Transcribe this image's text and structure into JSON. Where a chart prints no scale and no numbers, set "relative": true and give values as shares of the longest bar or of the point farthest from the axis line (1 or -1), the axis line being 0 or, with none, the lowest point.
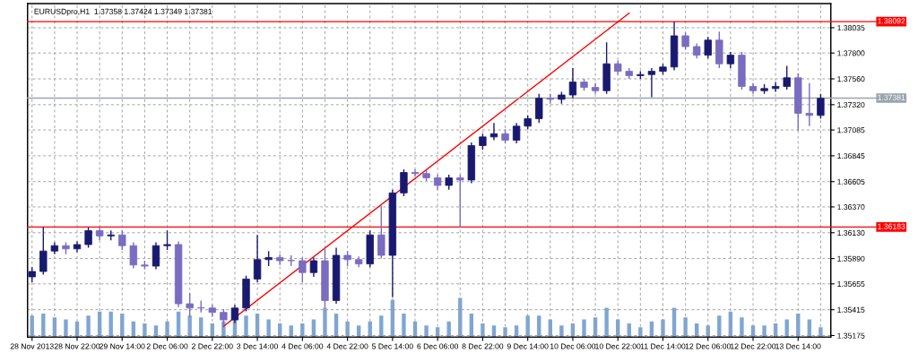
{
  "chart_data": [
    {
      "type": "candlestick",
      "title": "EURUSDpro,H1  1.37358 1.37424 1.37349 1.37381",
      "categories": [
        "28 Nov 2013",
        null,
        null,
        null,
        "28 Nov 22:00",
        null,
        null,
        null,
        "29 Nov 14:00",
        null,
        null,
        null,
        "2 Dec 06:00",
        null,
        null,
        null,
        "2 Dec 22:00",
        null,
        null,
        null,
        "3 Dec 14:00",
        null,
        null,
        null,
        "4 Dec 06:00",
        null,
        null,
        null,
        "4 Dec 22:00",
        null,
        null,
        null,
        "5 Dec 14:00",
        null,
        null,
        null,
        "6 Dec 06:00",
        null,
        null,
        null,
        "8 Dec 22:00",
        null,
        null,
        null,
        "9 Dec 14:00",
        null,
        null,
        null,
        "10 Dec 06:00",
        null,
        null,
        null,
        "10 Dec 22:00",
        null,
        null,
        null,
        "11 Dec 14:00",
        null,
        null,
        null,
        "12 Dec 06:00",
        null,
        null,
        null,
        "12 Dec 22:00",
        null,
        null,
        null,
        "13 Dec 14:00",
        null,
        null
      ],
      "ohlc": [
        [
          1.3572,
          1.3581,
          1.3567,
          1.3577
        ],
        [
          1.3577,
          1.3618,
          1.3574,
          1.3596
        ],
        [
          1.3596,
          1.3604,
          1.3593,
          1.3601
        ],
        [
          1.3601,
          1.3604,
          1.3593,
          1.3598
        ],
        [
          1.3598,
          1.3605,
          1.3595,
          1.3602
        ],
        [
          1.3602,
          1.3618,
          1.3599,
          1.3615
        ],
        [
          1.3615,
          1.3618,
          1.3606,
          1.361
        ],
        [
          1.361,
          1.3615,
          1.3606,
          1.3611
        ],
        [
          1.3611,
          1.3615,
          1.3597,
          1.3601
        ],
        [
          1.3601,
          1.3604,
          1.358,
          1.3583
        ],
        [
          1.3583,
          1.3587,
          1.3579,
          1.3582
        ],
        [
          1.3582,
          1.3604,
          1.3579,
          1.3601
        ],
        [
          1.3601,
          1.3615,
          1.3597,
          1.3602
        ],
        [
          1.3602,
          1.3605,
          1.3544,
          1.3547
        ],
        [
          1.3547,
          1.3557,
          1.3535,
          1.3543
        ],
        [
          1.3543,
          1.355,
          1.3539,
          1.3543
        ],
        [
          1.3543,
          1.3546,
          1.3535,
          1.3539
        ],
        [
          1.3539,
          1.3542,
          1.3526,
          1.3532
        ],
        [
          1.3532,
          1.3546,
          1.3529,
          1.3543
        ],
        [
          1.3543,
          1.3573,
          1.354,
          1.357
        ],
        [
          1.357,
          1.3611,
          1.3567,
          1.3588
        ],
        [
          1.3588,
          1.3596,
          1.3582,
          1.359
        ],
        [
          1.359,
          1.3593,
          1.3583,
          1.3587
        ],
        [
          1.3587,
          1.3592,
          1.3582,
          1.3587
        ],
        [
          1.3587,
          1.359,
          1.3567,
          1.3576
        ],
        [
          1.3576,
          1.359,
          1.3572,
          1.3587
        ],
        [
          1.3587,
          1.3599,
          1.3543,
          1.355
        ],
        [
          1.355,
          1.3599,
          1.3547,
          1.3592
        ],
        [
          1.3592,
          1.3596,
          1.3582,
          1.3588
        ],
        [
          1.3588,
          1.3591,
          1.3581,
          1.3584
        ],
        [
          1.3584,
          1.3615,
          1.3581,
          1.3611
        ],
        [
          1.3611,
          1.3638,
          1.3589,
          1.3592
        ],
        [
          1.3592,
          1.3653,
          1.3553,
          1.365
        ],
        [
          1.365,
          1.3672,
          1.3647,
          1.3669
        ],
        [
          1.3669,
          1.3672,
          1.3665,
          1.3668
        ],
        [
          1.3668,
          1.3671,
          1.3661,
          1.3664
        ],
        [
          1.3664,
          1.3667,
          1.3653,
          1.3657
        ],
        [
          1.3657,
          1.3667,
          1.3653,
          1.3664
        ],
        [
          1.3664,
          1.3667,
          1.3618,
          1.3662
        ],
        [
          1.3662,
          1.3697,
          1.3659,
          1.3694
        ],
        [
          1.3694,
          1.3705,
          1.369,
          1.3702
        ],
        [
          1.3702,
          1.3715,
          1.3699,
          1.3705
        ],
        [
          1.3705,
          1.3709,
          1.3696,
          1.3699
        ],
        [
          1.3699,
          1.3715,
          1.3696,
          1.3712
        ],
        [
          1.3712,
          1.3722,
          1.3709,
          1.3719
        ],
        [
          1.3719,
          1.3742,
          1.3715,
          1.3738
        ],
        [
          1.3738,
          1.3742,
          1.3733,
          1.3737
        ],
        [
          1.3737,
          1.3744,
          1.3733,
          1.3741
        ],
        [
          1.3741,
          1.3766,
          1.3738,
          1.3753
        ],
        [
          1.3753,
          1.3756,
          1.3745,
          1.3748
        ],
        [
          1.3748,
          1.3752,
          1.3742,
          1.3745
        ],
        [
          1.3745,
          1.379,
          1.3742,
          1.377
        ],
        [
          1.377,
          1.3773,
          1.376,
          1.3763
        ],
        [
          1.3763,
          1.3766,
          1.3756,
          1.3759
        ],
        [
          1.3759,
          1.3763,
          1.3756,
          1.376
        ],
        [
          1.376,
          1.3766,
          1.3739,
          1.3763
        ],
        [
          1.3763,
          1.377,
          1.376,
          1.3767
        ],
        [
          1.3767,
          1.3809,
          1.3764,
          1.3796
        ],
        [
          1.3796,
          1.3799,
          1.3783,
          1.3786
        ],
        [
          1.3786,
          1.3789,
          1.3775,
          1.3778
        ],
        [
          1.3778,
          1.3795,
          1.3775,
          1.3792
        ],
        [
          1.3792,
          1.38,
          1.3766,
          1.377
        ],
        [
          1.377,
          1.3781,
          1.3766,
          1.3778
        ],
        [
          1.3778,
          1.3781,
          1.3746,
          1.3749
        ],
        [
          1.3749,
          1.3752,
          1.3742,
          1.3745
        ],
        [
          1.3745,
          1.3751,
          1.3742,
          1.3747
        ],
        [
          1.3747,
          1.3753,
          1.3744,
          1.3749
        ],
        [
          1.3749,
          1.3768,
          1.3746,
          1.3757
        ],
        [
          1.3757,
          1.3761,
          1.3708,
          1.3724
        ],
        [
          1.3724,
          1.3752,
          1.3712,
          1.3722
        ],
        [
          1.3722,
          1.3742,
          1.3719,
          1.3738
        ]
      ],
      "colors": [
        "#191970",
        "#191970",
        "#191970",
        "#7a6cc0",
        "#191970",
        "#191970",
        "#7a6cc0",
        "#191970",
        "#7a6cc0",
        "#7a6cc0",
        "#7a6cc0",
        "#191970",
        "#191970",
        "#7a6cc0",
        "#7a6cc0",
        "#7a6cc0",
        "#7a6cc0",
        "#7a6cc0",
        "#191970",
        "#191970",
        "#191970",
        "#191970",
        "#7a6cc0",
        "#7a6cc0",
        "#7a6cc0",
        "#191970",
        "#7a6cc0",
        "#191970",
        "#7a6cc0",
        "#7a6cc0",
        "#191970",
        "#7a6cc0",
        "#191970",
        "#191970",
        "#7a6cc0",
        "#7a6cc0",
        "#7a6cc0",
        "#191970",
        "#7a6cc0",
        "#191970",
        "#191970",
        "#191970",
        "#7a6cc0",
        "#191970",
        "#191970",
        "#191970",
        "#7a6cc0",
        "#191970",
        "#191970",
        "#7a6cc0",
        "#7a6cc0",
        "#191970",
        "#7a6cc0",
        "#7a6cc0",
        "#191970",
        "#191970",
        "#191970",
        "#191970",
        "#7a6cc0",
        "#7a6cc0",
        "#191970",
        "#7a6cc0",
        "#191970",
        "#7a6cc0",
        "#7a6cc0",
        "#191970",
        "#191970",
        "#191970",
        "#7a6cc0",
        "#7a6cc0",
        "#191970"
      ],
      "series": [
        {
          "type": "line",
          "color": "#ff0000",
          "values": [
            null,
            null,
            null,
            null,
            null,
            null,
            null,
            null,
            null,
            null,
            null,
            null,
            null,
            null,
            null,
            null,
            null,
            1.3526,
            null,
            null,
            null,
            null,
            null,
            null,
            null,
            null,
            null,
            null,
            null,
            null,
            null,
            null,
            null,
            null,
            null,
            null,
            null,
            null,
            null,
            null,
            null,
            null,
            null,
            null,
            null,
            null,
            null,
            null,
            null,
            null,
            null,
            null,
            null,
            1.3817,
            null,
            null,
            null,
            null,
            null,
            null,
            null,
            null,
            null,
            null,
            null,
            null,
            null,
            null,
            null,
            null,
            null
          ]
        }
      ],
      "ylim": [
        1.3516,
        1.3826
      ],
      "yticks": [
        1.35175,
        1.35415,
        1.35655,
        {
          "value": 1.3589,
          "label": "1.35890"
        },
        {
          "value": 1.3613,
          "label": "1.36130"
        },
        {
          "value": 1.3637,
          "label": "1.36370"
        },
        1.36605,
        1.36845,
        1.37085,
        {
          "value": 1.3732,
          "label": "1.37320"
        },
        {
          "value": 1.3756,
          "label": "1.37560"
        },
        {
          "value": 1.378,
          "label": "1.37800"
        },
        1.38035
      ],
      "ref_lines": [
        {
          "axis": "y",
          "value": 1.38092,
          "label": "1.38092",
          "color": "#ff0000"
        },
        {
          "axis": "y",
          "value": 1.36183,
          "label": "1.36183",
          "color": "#ff0000"
        },
        {
          "axis": "y",
          "value": 1.37381,
          "label": "1.37381",
          "color": "#9aa4ae"
        }
      ],
      "grid": true
    },
    {
      "type": "bar",
      "relative": true,
      "color": "#7ea6d4",
      "categories": [
        null,
        null,
        null,
        null,
        null,
        null,
        null,
        null,
        null,
        null,
        null,
        null,
        null,
        null,
        null,
        null,
        null,
        null,
        null,
        null,
        null,
        null,
        null,
        null,
        null,
        null,
        null,
        null,
        null,
        null,
        null,
        null,
        null,
        null,
        null,
        null,
        null,
        null,
        null,
        null,
        null,
        null,
        null,
        null,
        null,
        null,
        null,
        null,
        null,
        null,
        null,
        null,
        null,
        null,
        null,
        null,
        null,
        null,
        null,
        null,
        null,
        null,
        null,
        null,
        null,
        null,
        null,
        null,
        null,
        null,
        null
      ],
      "values": [
        0.55,
        0.6,
        0.5,
        0.45,
        0.4,
        0.55,
        0.65,
        0.65,
        0.6,
        0.4,
        0.35,
        0.3,
        0.4,
        0.65,
        0.55,
        0.5,
        0.35,
        0.4,
        0.45,
        0.55,
        0.6,
        0.45,
        0.35,
        0.3,
        0.35,
        0.45,
        0.75,
        0.6,
        0.4,
        0.3,
        0.4,
        0.55,
        0.95,
        0.6,
        0.4,
        0.3,
        0.25,
        0.4,
        1.0,
        0.6,
        0.35,
        0.3,
        0.25,
        0.3,
        0.55,
        0.55,
        0.45,
        0.3,
        0.35,
        0.45,
        0.5,
        0.75,
        0.45,
        0.35,
        0.25,
        0.4,
        0.45,
        0.75,
        0.5,
        0.35,
        0.3,
        0.55,
        0.65,
        0.5,
        0.3,
        0.3,
        0.35,
        0.45,
        0.6,
        0.45,
        0.25
      ]
    }
  ]
}
